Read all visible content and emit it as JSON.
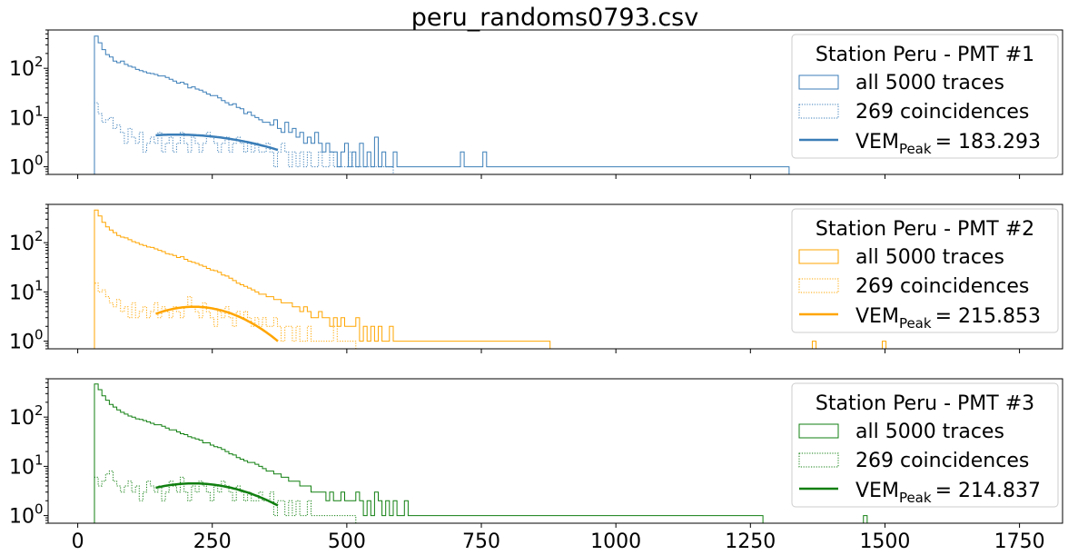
{
  "title": "peru_randoms0793.csv",
  "colors": {
    "pmt1": "#3b7eb8",
    "pmt2": "#ffa500",
    "pmt3": "#107f10"
  },
  "chart_data": {
    "type": "step-histogram",
    "title": "peru_randoms0793.csv",
    "xlabel": "",
    "ylabel": "",
    "xlim": [
      -55,
      1830
    ],
    "ylim": [
      0.7,
      600
    ],
    "yscale": "log",
    "shared_x": true,
    "x_ticks": [
      "0",
      "250",
      "500",
      "750",
      "1000",
      "1250",
      "1500",
      "1750"
    ],
    "x_tick_values": [
      0,
      250,
      500,
      750,
      1000,
      1250,
      1500,
      1750
    ],
    "y_ticks": [
      {
        "value": 1,
        "base": "10",
        "exp": "0"
      },
      {
        "value": 10,
        "base": "10",
        "exp": "1"
      },
      {
        "value": 100,
        "base": "10",
        "exp": "2"
      }
    ],
    "bin_width": 6.94,
    "panels": [
      {
        "legend_title": "Station Peru - PMT #1",
        "legend_placement": "top-right",
        "color": "#3b7eb8",
        "fit_label": "VEM",
        "fit_sub": "Peak",
        "fit_value": "= 183.293",
        "series": [
          {
            "name": "all 5000 traces",
            "style": "solid",
            "x_start": 31,
            "values": [
              450,
              330,
              240,
              190,
              170,
              140,
              130,
              140,
              120,
              110,
              105,
              95,
              90,
              85,
              80,
              78,
              75,
              70,
              70,
              65,
              60,
              55,
              50,
              52,
              48,
              40,
              42,
              38,
              36,
              33,
              30,
              28,
              28,
              25,
              22,
              20,
              18,
              19,
              16,
              15,
              12,
              13,
              11,
              10,
              9,
              8,
              8,
              7,
              9,
              6,
              5,
              8,
              5,
              6,
              4,
              5,
              3,
              4,
              3,
              5,
              3,
              2,
              3,
              2,
              2,
              1,
              2,
              3,
              1,
              2,
              1,
              3,
              1,
              2,
              1,
              4,
              1,
              2,
              1,
              1,
              2,
              1,
              1,
              1,
              1,
              1,
              1,
              1,
              1,
              1,
              1,
              1,
              1,
              1,
              1,
              1,
              1,
              1,
              2,
              1,
              1,
              1,
              1,
              1,
              2,
              1,
              1,
              1,
              1,
              1,
              1,
              1,
              1,
              1,
              1,
              1,
              1,
              1,
              1,
              1,
              1,
              1,
              1,
              1,
              1,
              1,
              1,
              1,
              1,
              1,
              1,
              1,
              1,
              1,
              1,
              1,
              1,
              1,
              1,
              1,
              1,
              1,
              1,
              1,
              1,
              1,
              1,
              1,
              1,
              1,
              1,
              1,
              1,
              1,
              1,
              1,
              1,
              1,
              1,
              1,
              1,
              1,
              1,
              1,
              1,
              1,
              1,
              1,
              1,
              1,
              1,
              1,
              1,
              1,
              1,
              1,
              1,
              1,
              1,
              1,
              1,
              1,
              1,
              1,
              1,
              1
            ],
            "extras": []
          },
          {
            "name": "269 coincidences",
            "style": "dotted",
            "x_start": 31,
            "values": [
              20,
              12,
              8,
              9,
              10,
              6,
              7,
              5,
              3,
              6,
              4,
              3,
              5,
              2,
              3,
              4,
              3,
              5,
              2,
              3,
              4,
              2,
              3,
              5,
              3,
              2,
              4,
              3,
              2,
              3,
              5,
              4,
              3,
              2,
              3,
              4,
              2,
              3,
              4,
              3,
              2,
              3,
              2,
              3,
              2,
              2,
              3,
              2,
              1,
              2,
              3,
              2,
              1,
              2,
              1,
              2,
              1,
              2,
              1,
              1,
              2,
              1,
              1,
              2,
              1,
              1,
              1,
              1,
              2,
              1,
              1,
              1,
              1,
              1,
              1,
              1,
              1,
              1,
              1,
              1
            ],
            "extras": []
          }
        ],
        "fit": {
          "x_range": [
            145,
            372
          ],
          "peak_x": 183.293,
          "peak_y": 4.5,
          "end_y": 2.2
        }
      },
      {
        "legend_title": "Station Peru - PMT #2",
        "legend_placement": "top-right",
        "color": "#ffa500",
        "fit_label": "VEM",
        "fit_sub": "Peak",
        "fit_value": "= 215.853",
        "series": [
          {
            "name": "all 5000 traces",
            "style": "solid",
            "x_start": 31,
            "values": [
              460,
              350,
              260,
              210,
              180,
              160,
              140,
              130,
              125,
              115,
              105,
              100,
              92,
              88,
              82,
              80,
              75,
              70,
              66,
              60,
              58,
              55,
              50,
              52,
              46,
              42,
              40,
              38,
              35,
              33,
              30,
              28,
              27,
              25,
              22,
              21,
              19,
              17,
              15,
              14,
              13,
              12,
              11,
              10,
              9,
              9,
              8,
              8,
              7,
              7,
              6,
              6,
              6,
              5,
              5,
              4,
              5,
              4,
              3,
              3,
              4,
              3,
              3,
              2,
              3,
              2,
              3,
              2,
              2,
              2,
              3,
              1,
              2,
              1,
              2,
              1,
              2,
              1,
              1,
              2,
              1,
              1,
              1,
              1,
              1,
              1,
              1,
              1,
              1,
              1,
              1,
              1,
              1,
              1,
              1,
              1,
              1,
              1,
              1,
              1,
              1,
              1,
              1,
              1,
              1,
              1,
              1,
              1,
              1,
              1,
              1,
              1,
              1,
              1,
              1,
              1,
              1,
              1,
              1,
              1,
              1,
              1
            ],
            "extras": [
              [
                1365,
                1
              ],
              [
                1495,
                1
              ]
            ]
          },
          {
            "name": "269 coincidences",
            "style": "dotted",
            "x_start": 31,
            "values": [
              15,
              10,
              11,
              8,
              6,
              5,
              7,
              4,
              5,
              3,
              6,
              3,
              4,
              5,
              3,
              4,
              6,
              3,
              5,
              4,
              3,
              5,
              4,
              3,
              5,
              8,
              5,
              4,
              3,
              6,
              4,
              3,
              2,
              4,
              3,
              5,
              3,
              2,
              4,
              3,
              4,
              3,
              2,
              3,
              2,
              3,
              2,
              2,
              3,
              2,
              1,
              2,
              2,
              1,
              2,
              1,
              1,
              2,
              1,
              1,
              1,
              1,
              1,
              1,
              2,
              1,
              1,
              1,
              1,
              1
            ],
            "extras": []
          }
        ],
        "fit": {
          "x_range": [
            145,
            372
          ],
          "peak_x": 215.853,
          "peak_y": 5.0,
          "end_y": 1.0
        }
      },
      {
        "legend_title": "Station Peru - PMT #3",
        "legend_placement": "top-right",
        "color": "#107f10",
        "fit_label": "VEM",
        "fit_sub": "Peak",
        "fit_value": "= 214.837",
        "series": [
          {
            "name": "all 5000 traces",
            "style": "solid",
            "x_start": 31,
            "values": [
              470,
              360,
              270,
              220,
              180,
              160,
              140,
              125,
              115,
              105,
              100,
              92,
              90,
              85,
              80,
              75,
              70,
              70,
              65,
              60,
              55,
              55,
              50,
              46,
              44,
              40,
              38,
              36,
              34,
              30,
              30,
              27,
              25,
              24,
              22,
              20,
              18,
              17,
              15,
              14,
              13,
              12,
              12,
              11,
              10,
              9,
              8,
              8,
              7,
              7,
              6,
              6,
              5,
              5,
              5,
              4,
              4,
              4,
              3,
              3,
              3,
              3,
              2,
              3,
              2,
              2,
              3,
              2,
              2,
              2,
              3,
              2,
              1,
              2,
              1,
              3,
              2,
              1,
              2,
              1,
              2,
              1,
              1,
              2,
              1,
              1,
              1,
              1,
              1,
              1,
              1,
              1,
              1,
              1,
              1,
              1,
              1,
              1,
              1,
              1,
              1,
              1,
              1,
              1,
              1,
              1,
              1,
              1,
              1,
              1,
              1,
              1,
              1,
              1,
              1,
              1,
              1,
              1,
              1,
              1,
              1,
              1,
              1,
              1,
              1,
              1,
              1,
              1,
              1,
              1,
              1,
              1,
              1,
              1,
              1,
              1,
              1,
              1,
              1,
              1,
              1,
              1,
              1,
              1,
              1,
              1,
              1,
              1,
              1,
              1,
              1,
              1,
              1,
              1,
              1,
              1,
              1,
              1,
              1,
              1,
              1,
              1,
              1,
              1,
              1,
              1,
              1,
              1,
              1,
              1,
              1,
              1,
              1,
              1,
              1,
              1,
              1,
              1,
              1
            ],
            "extras": [
              [
                1460,
                1
              ]
            ]
          },
          {
            "name": "269 coincidences",
            "style": "dotted",
            "x_start": 31,
            "values": [
              6,
              4,
              5,
              7,
              8,
              5,
              4,
              3,
              4,
              5,
              3,
              4,
              2,
              3,
              5,
              4,
              3,
              4,
              2,
              3,
              5,
              4,
              3,
              6,
              3,
              2,
              4,
              3,
              5,
              4,
              3,
              2,
              4,
              3,
              5,
              4,
              3,
              2,
              4,
              3,
              2,
              3,
              2,
              2,
              3,
              2,
              2,
              3,
              1,
              2,
              2,
              1,
              2,
              1,
              2,
              1,
              1,
              2,
              1,
              1,
              1,
              1,
              1,
              1,
              1,
              1,
              1,
              1,
              1,
              1
            ],
            "extras": []
          }
        ],
        "fit": {
          "x_range": [
            145,
            372
          ],
          "peak_x": 214.837,
          "peak_y": 4.5,
          "end_y": 1.6
        }
      }
    ]
  }
}
